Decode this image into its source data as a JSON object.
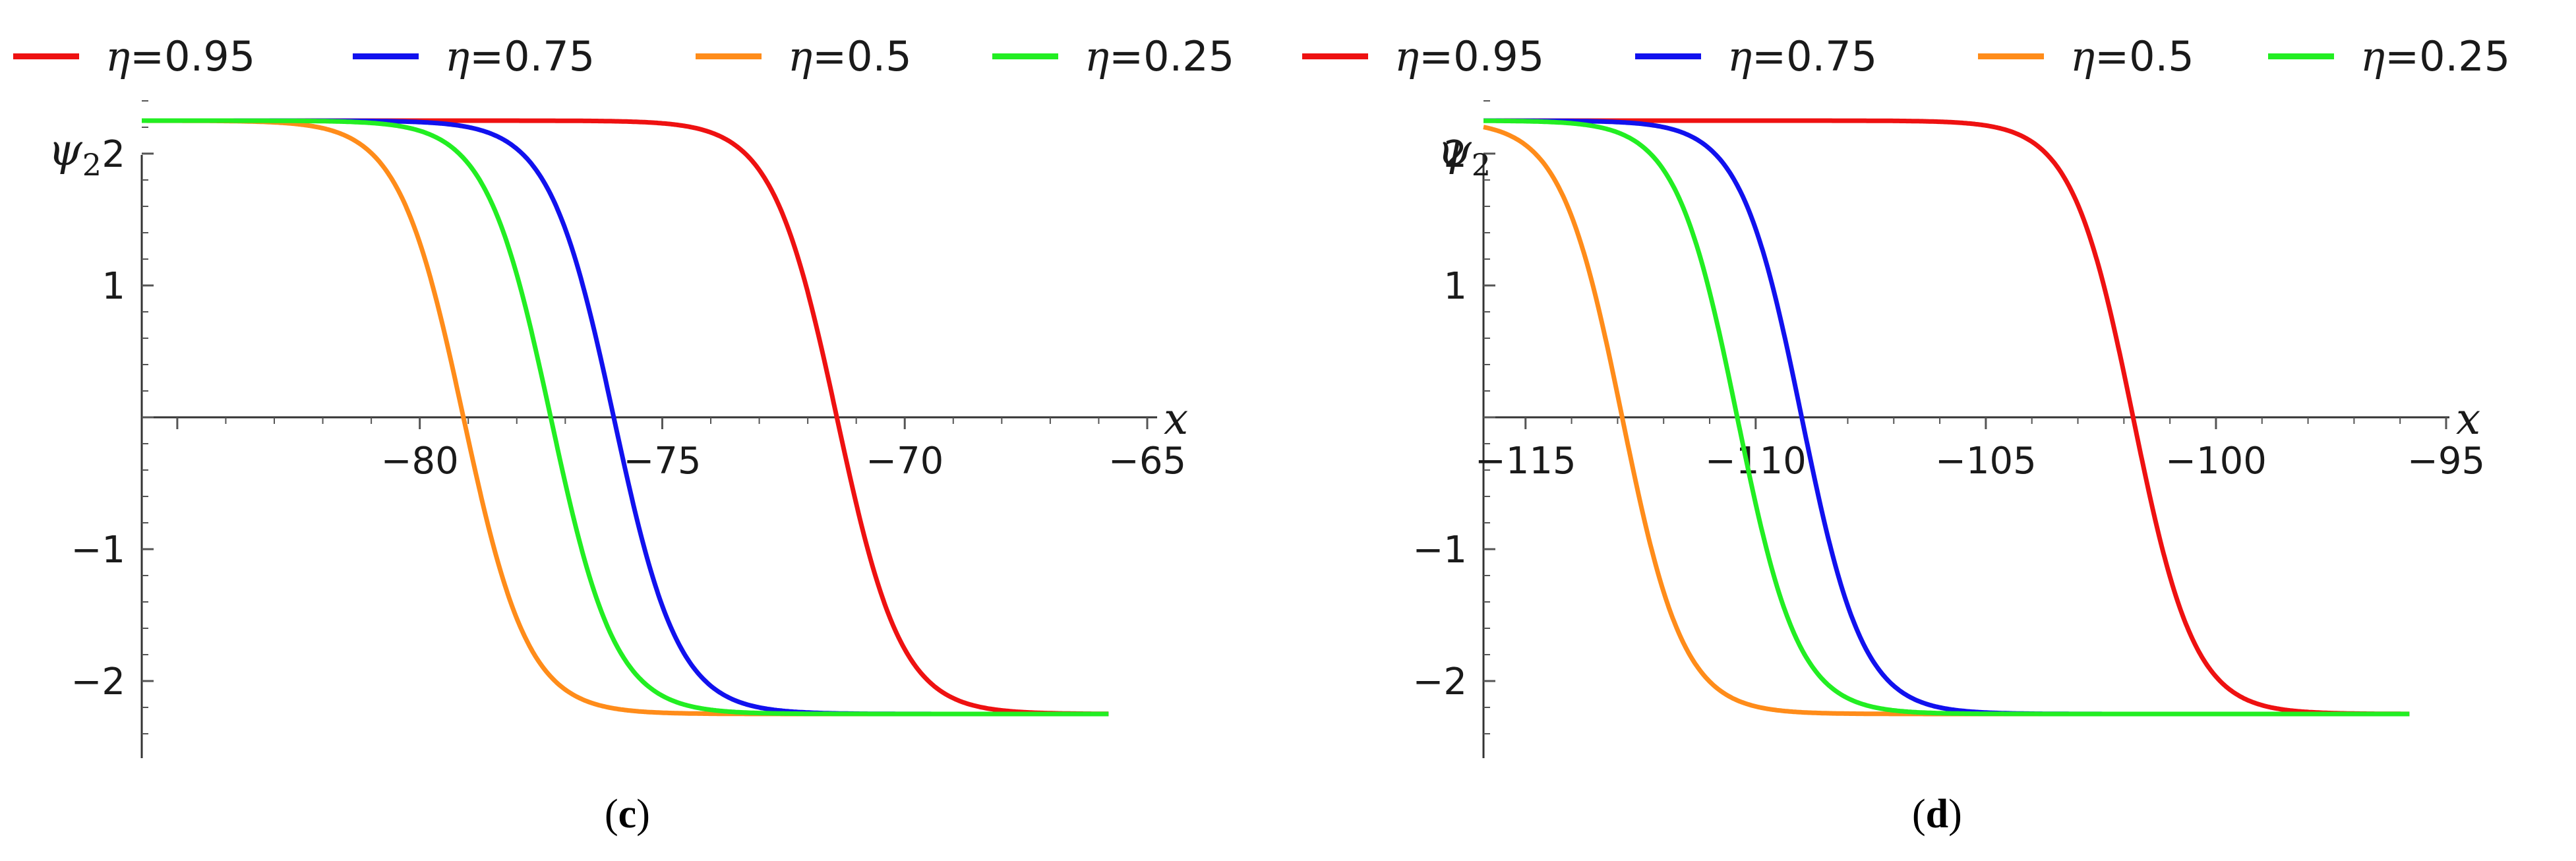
{
  "legend": [
    {
      "label": "η=0.95",
      "sym": "η",
      "val": "=0.95",
      "color": "#ee1111"
    },
    {
      "label": "η=0.75",
      "sym": "η",
      "val": "=0.75",
      "color": "#1111ee"
    },
    {
      "label": "η=0.5",
      "sym": "η",
      "val": "=0.5",
      "color": "#ff8c1a"
    },
    {
      "label": "η=0.25",
      "sym": "η",
      "val": "=0.25",
      "color": "#22ee22"
    },
    {
      "label": "η=0.95",
      "sym": "η",
      "val": "=0.95",
      "color": "#ee1111"
    },
    {
      "label": "η=0.75",
      "sym": "η",
      "val": "=0.75",
      "color": "#1111ee"
    },
    {
      "label": "η=0.5",
      "sym": "η",
      "val": "=0.5",
      "color": "#ff8c1a"
    },
    {
      "label": "η=0.25",
      "sym": "η",
      "val": "=0.25",
      "color": "#22ee22"
    }
  ],
  "chart_data": [
    {
      "type": "line",
      "panel": "(c)",
      "xlabel": "x",
      "ylabel": "ψ2",
      "xlim": [
        -87.5,
        -65
      ],
      "ylim": [
        -2.5,
        2.5
      ],
      "amplitude": 2.25,
      "xticks": [
        -80,
        -75,
        -70,
        -65
      ],
      "xtick_labels": [
        "−80",
        "−75",
        "−70",
        "−65"
      ],
      "yticks": [
        2,
        1,
        -1,
        -2
      ],
      "ytick_labels": [
        "2",
        "1",
        "−1",
        "−2"
      ],
      "series": [
        {
          "name": "η=0.95",
          "color": "#ee1111",
          "center": -71.4
        },
        {
          "name": "η=0.75",
          "color": "#1111ee",
          "center": -76.0
        },
        {
          "name": "η=0.5",
          "color": "#ff8c1a",
          "center": -79.1
        },
        {
          "name": "η=0.25",
          "color": "#22ee22",
          "center": -77.3
        }
      ]
    },
    {
      "type": "line",
      "panel": "(d)",
      "xlabel": "x",
      "ylabel": "ψ2",
      "xlim": [
        -121.5,
        -95
      ],
      "ylim": [
        -2.5,
        2.5
      ],
      "amplitude": 2.25,
      "xticks": [
        -115,
        -110,
        -105,
        -100,
        -95
      ],
      "xtick_labels": [
        "−115",
        "−110",
        "−105",
        "−100",
        "−95"
      ],
      "yticks": [
        2,
        1,
        -1,
        -2
      ],
      "ytick_labels": [
        "2",
        "1",
        "−1",
        "−2"
      ],
      "series": [
        {
          "name": "η=0.95",
          "color": "#ee1111",
          "center": -101.8
        },
        {
          "name": "η=0.75",
          "color": "#1111ee",
          "center": -109.0
        },
        {
          "name": "η=0.5",
          "color": "#ff8c1a",
          "center": -112.9
        },
        {
          "name": "η=0.25",
          "color": "#22ee22",
          "center": -110.4
        }
      ]
    }
  ]
}
